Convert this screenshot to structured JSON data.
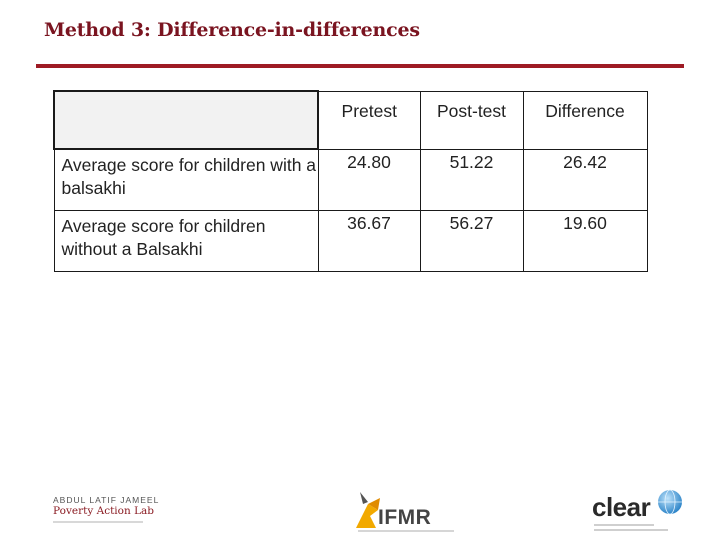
{
  "slide": {
    "title": "Method 3: Difference-in-differences"
  },
  "table": {
    "columns": [
      "Pretest",
      "Post-test",
      "Difference"
    ],
    "rows": [
      {
        "label": "Average score for children with a balsakhi",
        "values": [
          "24.80",
          "51.22",
          "26.42"
        ]
      },
      {
        "label": "Average score for children without a Balsakhi",
        "values": [
          "36.67",
          "56.27",
          "19.60"
        ]
      }
    ]
  },
  "footer": {
    "logo_left": {
      "line1": "ABDUL LATIF JAMEEL",
      "line2": "Poverty Action Lab"
    },
    "logo_center": {
      "text": "IFMR"
    },
    "logo_right": {
      "text": "clear"
    }
  },
  "colors": {
    "title": "#7a1420",
    "rule": "#9e1b24",
    "ifmr_accent": "#f2a900",
    "clear_globe": "#4a9fd8"
  }
}
